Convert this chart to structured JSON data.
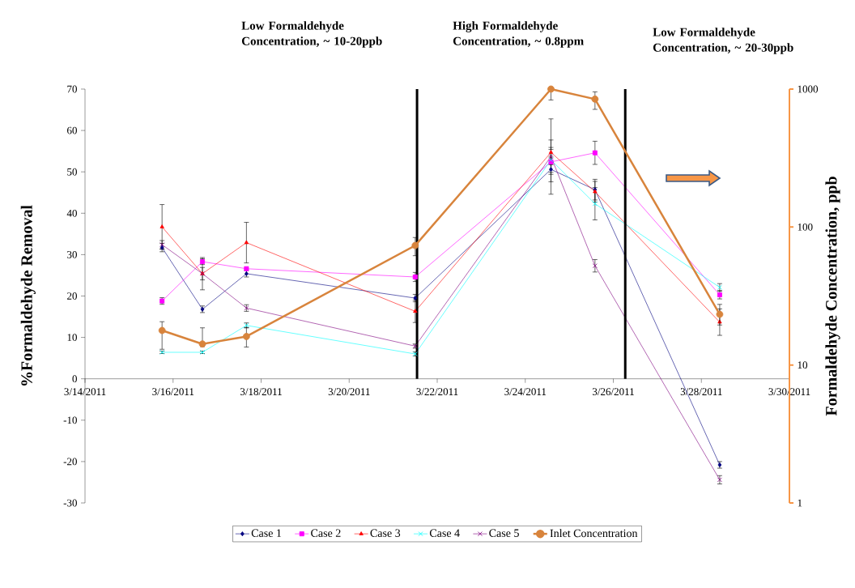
{
  "chart_data": {
    "type": "line",
    "ylabel": "%Formaldehyde Removal",
    "y2label": "Formaldehyde Concentration, ppb",
    "annotations": [
      "Low Formaldehyde Concentration, ~ 10-20ppb",
      "High Formaldehyde Concentration, ~ 0.8ppm",
      "Low Formaldehyde Concentration, ~ 20-30ppb"
    ],
    "x": [
      "2011-03-15T18:00",
      "2011-03-16T16:00",
      "2011-03-17T16:00",
      "2011-03-21T12:00",
      "2011-03-24T14:00",
      "2011-03-25T14:00",
      "2011-03-28T10:00"
    ],
    "series": [
      {
        "name": "Case 1",
        "color": "#000080",
        "marker": "diamond",
        "values": [
          31.7,
          16.8,
          25.4,
          19.5,
          50.6,
          45.7,
          -20.8
        ],
        "errors": [
          1,
          0.8,
          0.8,
          0.9,
          3,
          2.5,
          0.8
        ]
      },
      {
        "name": "Case 2",
        "color": "#ff00ff",
        "marker": "square",
        "values": [
          18.8,
          28.3,
          26.6,
          24.6,
          52.4,
          54.6,
          20.3
        ],
        "errors": [
          0.8,
          0.7,
          null,
          1.1,
          3,
          2.8,
          1
        ]
      },
      {
        "name": "Case 3",
        "color": "#ff0000",
        "marker": "triangle",
        "values": [
          36.7,
          25.4,
          32.9,
          16.3,
          54.7,
          45.2,
          13.7
        ],
        "errors": [
          5.4,
          3.9,
          4.9,
          2.7,
          3,
          2.5,
          3.2
        ]
      },
      {
        "name": "Case 4",
        "color": "#00ffff",
        "marker": "cross",
        "values": [
          6.4,
          6.4,
          12.9,
          6.0,
          52.9,
          42.3,
          22.1
        ],
        "errors": [
          0.3,
          0.3,
          0.6,
          0.5,
          3,
          3.9,
          0.9
        ]
      },
      {
        "name": "Case 5",
        "color": "#800080",
        "marker": "cross",
        "values": [
          32.4,
          25.4,
          17.1,
          7.9,
          53.7,
          27.3,
          -24.4
        ],
        "errors": [
          1,
          1.5,
          0.8,
          0.5,
          9.1,
          1.5,
          1
        ]
      },
      {
        "name": "Inlet Concentration",
        "color": "#d8843c",
        "marker": "circle",
        "axis": "y2",
        "values": [
          17.8,
          14.2,
          16.1,
          73.5,
          1000,
          846,
          23.3
        ],
        "errors": [
          [
            13.0,
            20.6
          ],
          [
            13.6,
            18.6
          ],
          [
            13.5,
            18.7
          ],
          [
            62,
            84
          ],
          [
            834,
            1000
          ],
          [
            713,
            955
          ],
          [
            19.5,
            27.5
          ]
        ]
      }
    ],
    "xlim": [
      "2011-03-14",
      "2011-03-30"
    ],
    "xticks": [
      {
        "value": "2011-03-14",
        "label": "3/14/2011"
      },
      {
        "value": "2011-03-16",
        "label": "3/16/2011"
      },
      {
        "value": "2011-03-18",
        "label": "3/18/2011"
      },
      {
        "value": "2011-03-20",
        "label": "3/20/2011"
      },
      {
        "value": "2011-03-22",
        "label": "3/22/2011"
      },
      {
        "value": "2011-03-24",
        "label": "3/24/2011"
      },
      {
        "value": "2011-03-26",
        "label": "3/26/2011"
      },
      {
        "value": "2011-03-28",
        "label": "3/28/2011"
      },
      {
        "value": "2011-03-30",
        "label": "3/30/2011"
      }
    ],
    "ylim": [
      -30,
      70
    ],
    "yticks": [
      -30,
      -20,
      -10,
      0,
      10,
      20,
      30,
      40,
      50,
      60,
      70
    ],
    "y2lim": [
      1,
      1000
    ],
    "y2ticks": [
      1,
      10,
      100,
      1000
    ],
    "log": "y2",
    "ref_lines": [
      {
        "axis": "x",
        "value": "2011-03-21T13:00",
        "color": "#000000"
      },
      {
        "axis": "x",
        "value": "2011-03-26T06:30",
        "color": "#000000"
      }
    ],
    "legend": "bottom",
    "line_style": "solid"
  }
}
